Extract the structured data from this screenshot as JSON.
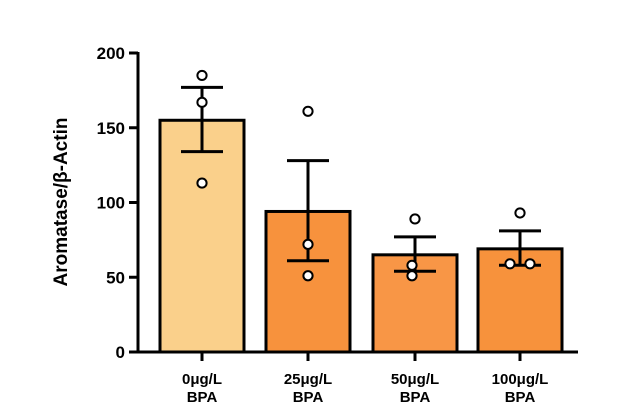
{
  "chart_data": {
    "type": "bar",
    "title": "",
    "xlabel": "",
    "ylabel": "Aromatase/β-Actin",
    "ylim": [
      0,
      200
    ],
    "yticks": [
      "0",
      "50",
      "100",
      "150",
      "200"
    ],
    "grid": false,
    "legend": "none",
    "categories": [
      {
        "line1": "0μg/L",
        "line2": "BPA"
      },
      {
        "line1": "25μg/L",
        "line2": "BPA"
      },
      {
        "line1": "50μg/L",
        "line2": "BPA"
      },
      {
        "line1": "100μg/L",
        "line2": "BPA"
      }
    ],
    "values": [
      155,
      94,
      65,
      69
    ],
    "error_high": [
      177,
      128,
      77,
      81
    ],
    "error_low": [
      134,
      61,
      54,
      58
    ],
    "points": [
      [
        185,
        167,
        113
      ],
      [
        161,
        72,
        51
      ],
      [
        89,
        58,
        51
      ],
      [
        93,
        59,
        59
      ]
    ],
    "colors": [
      "#FAD08B",
      "#F7923D",
      "#F89646",
      "#F7923C"
    ]
  }
}
